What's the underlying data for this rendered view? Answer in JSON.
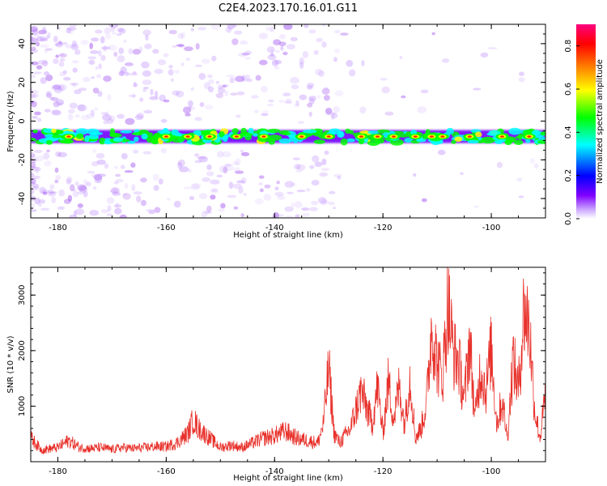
{
  "title": "C2E4.2023.170.16.01.G11",
  "chart_data": [
    {
      "type": "heatmap",
      "xlabel": "Height of straight line (km)",
      "ylabel": "Frequency (Hz)",
      "xlim": [
        -185,
        -90
      ],
      "ylim": [
        -50,
        50
      ],
      "xticks": [
        -180,
        -160,
        -140,
        -120,
        -100
      ],
      "yticks": [
        -40,
        -20,
        0,
        20,
        40
      ],
      "band": {
        "center_frequency": -8,
        "width": 10,
        "note": "dominant high-amplitude ridge near -8 Hz"
      },
      "hotspots_x": [
        -178,
        -160,
        -156,
        -152,
        -147,
        -142,
        -135,
        -130,
        -124,
        -121,
        -118,
        -114,
        -111,
        -109,
        -104,
        -98,
        -93
      ],
      "colorbar": {
        "label": "Normalized spectral amplitude",
        "range": [
          0.0,
          0.9
        ],
        "ticks": [
          "0.0",
          "0.2",
          "0.4",
          "0.6",
          "0.8"
        ],
        "colors": [
          "#ffffff",
          "#c8a0ff",
          "#7b00ff",
          "#0000ff",
          "#00ffff",
          "#00ff00",
          "#ffff00",
          "#ff8000",
          "#ff0000",
          "#ff0080"
        ]
      },
      "grid": false
    },
    {
      "type": "line",
      "xlabel": "Height of straight line (km)",
      "ylabel": "SNR (10 * v/v)",
      "xlim": [
        -185,
        -90
      ],
      "ylim": [
        0,
        3500
      ],
      "xticks": [
        -180,
        -160,
        -140,
        -120,
        -100
      ],
      "yticks": [
        1000,
        2000,
        3000
      ],
      "color": "#e8302a",
      "grid": false,
      "x": [
        -185,
        -183,
        -180,
        -178,
        -176,
        -174,
        -172,
        -170,
        -168,
        -166,
        -164,
        -162,
        -160,
        -158,
        -156,
        -155,
        -154,
        -152,
        -150,
        -148,
        -146,
        -144,
        -142,
        -140,
        -138,
        -136,
        -134,
        -132,
        -131,
        -130,
        -129,
        -128,
        -126,
        -124,
        -122,
        -121,
        -120,
        -119,
        -118,
        -117,
        -116,
        -115,
        -114,
        -113,
        -112,
        -111,
        -110,
        -109,
        -108,
        -107,
        -106,
        -105,
        -104,
        -103,
        -102,
        -101,
        -100,
        -99,
        -98,
        -97,
        -96,
        -95,
        -94,
        -93,
        -92,
        -91,
        -90
      ],
      "y": [
        500,
        250,
        300,
        450,
        300,
        280,
        300,
        260,
        300,
        280,
        300,
        320,
        320,
        400,
        600,
        900,
        700,
        500,
        300,
        350,
        300,
        400,
        500,
        550,
        650,
        500,
        450,
        400,
        800,
        2000,
        600,
        400,
        700,
        1500,
        800,
        1600,
        600,
        1700,
        900,
        1600,
        800,
        1800,
        500,
        700,
        1200,
        2900,
        2100,
        1800,
        3400,
        2300,
        2100,
        1300,
        2600,
        900,
        2000,
        1500,
        2400,
        800,
        1300,
        500,
        2200,
        1500,
        3200,
        2900,
        1100,
        500,
        1400
      ]
    }
  ]
}
